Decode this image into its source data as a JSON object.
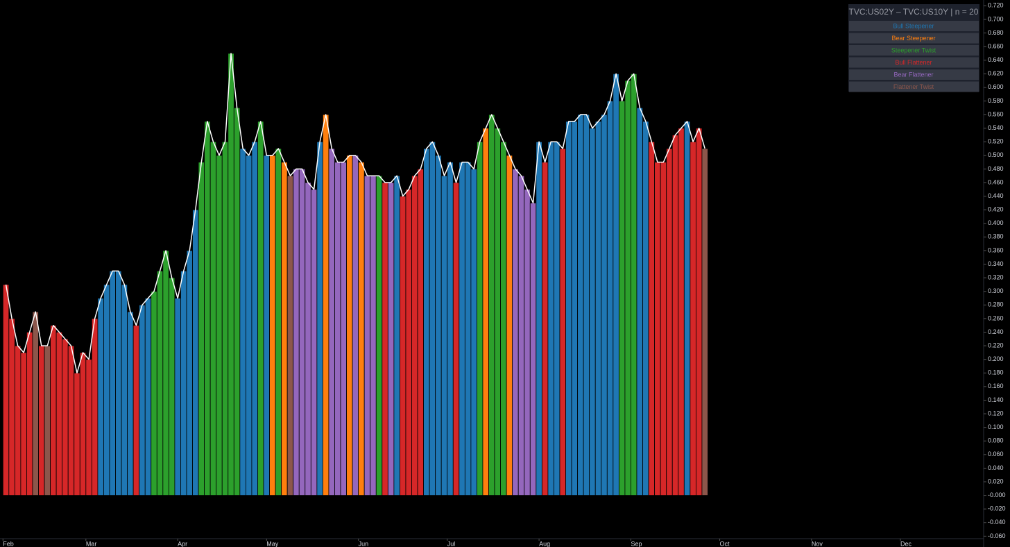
{
  "chart_data": {
    "type": "bar",
    "legend_title": "TVC:US02Y – TVC:US10Y | n = 20",
    "legend": [
      {
        "name": "Bull Steepener",
        "color": "#1f77b4"
      },
      {
        "name": "Bear Steepener",
        "color": "#ff7f0e"
      },
      {
        "name": "Steepener Twist",
        "color": "#2ca02c"
      },
      {
        "name": "Bull Flattener",
        "color": "#d62728"
      },
      {
        "name": "Bear Flattener",
        "color": "#9467bd"
      },
      {
        "name": "Flattener Twist",
        "color": "#8c564b"
      }
    ],
    "values": [
      0.31,
      0.26,
      0.22,
      0.21,
      0.24,
      0.27,
      0.22,
      0.22,
      0.25,
      0.24,
      0.23,
      0.22,
      0.18,
      0.21,
      0.2,
      0.26,
      0.29,
      0.31,
      0.33,
      0.33,
      0.31,
      0.27,
      0.25,
      0.28,
      0.29,
      0.3,
      0.33,
      0.36,
      0.32,
      0.29,
      0.33,
      0.36,
      0.42,
      0.49,
      0.55,
      0.52,
      0.5,
      0.52,
      0.65,
      0.57,
      0.51,
      0.5,
      0.52,
      0.55,
      0.5,
      0.5,
      0.51,
      0.49,
      0.47,
      0.48,
      0.48,
      0.46,
      0.45,
      0.52,
      0.56,
      0.51,
      0.49,
      0.49,
      0.5,
      0.5,
      0.49,
      0.47,
      0.47,
      0.47,
      0.46,
      0.46,
      0.47,
      0.44,
      0.45,
      0.47,
      0.48,
      0.51,
      0.52,
      0.5,
      0.47,
      0.49,
      0.46,
      0.49,
      0.49,
      0.48,
      0.52,
      0.54,
      0.56,
      0.54,
      0.52,
      0.5,
      0.48,
      0.47,
      0.45,
      0.43,
      0.52,
      0.49,
      0.52,
      0.52,
      0.51,
      0.55,
      0.55,
      0.56,
      0.56,
      0.54,
      0.55,
      0.56,
      0.58,
      0.62,
      0.58,
      0.61,
      0.62,
      0.57,
      0.55,
      0.52,
      0.49,
      0.49,
      0.51,
      0.53,
      0.54,
      0.55,
      0.52,
      0.54,
      0.51
    ],
    "regime": [
      3,
      3,
      3,
      3,
      3,
      5,
      3,
      5,
      3,
      3,
      3,
      3,
      3,
      3,
      3,
      3,
      0,
      0,
      0,
      0,
      0,
      0,
      3,
      0,
      0,
      2,
      2,
      2,
      2,
      0,
      0,
      0,
      0,
      2,
      2,
      2,
      2,
      2,
      2,
      2,
      0,
      0,
      0,
      2,
      0,
      1,
      2,
      1,
      5,
      4,
      4,
      4,
      4,
      0,
      1,
      4,
      4,
      4,
      1,
      4,
      1,
      4,
      4,
      2,
      3,
      4,
      0,
      3,
      3,
      3,
      3,
      0,
      0,
      0,
      0,
      0,
      3,
      0,
      0,
      0,
      2,
      1,
      2,
      2,
      2,
      1,
      4,
      4,
      4,
      4,
      0,
      3,
      0,
      0,
      3,
      0,
      0,
      0,
      0,
      0,
      0,
      0,
      0,
      0,
      2,
      2,
      2,
      0,
      0,
      3,
      3,
      3,
      3,
      3,
      3,
      0,
      3,
      3,
      5
    ],
    "xlim": [
      -0.5,
      165.2
    ],
    "xticks": [
      {
        "value": 0,
        "label": "Feb"
      },
      {
        "value": 14,
        "label": "Mar"
      },
      {
        "value": 29.5,
        "label": "Apr"
      },
      {
        "value": 44.5,
        "label": "May"
      },
      {
        "value": 60,
        "label": "Jun"
      },
      {
        "value": 75,
        "label": "Jul"
      },
      {
        "value": 90.5,
        "label": "Aug"
      },
      {
        "value": 106,
        "label": "Sep"
      },
      {
        "value": 121,
        "label": "Oct"
      },
      {
        "value": 136.5,
        "label": "Nov"
      },
      {
        "value": 151.5,
        "label": "Dec"
      }
    ],
    "ylim": [
      -0.0637,
      0.7285
    ],
    "yticks": [
      {
        "value": 0.72,
        "label": "0.720"
      },
      {
        "value": 0.7,
        "label": "0.700"
      },
      {
        "value": 0.68,
        "label": "0.680"
      },
      {
        "value": 0.66,
        "label": "0.660"
      },
      {
        "value": 0.64,
        "label": "0.640"
      },
      {
        "value": 0.62,
        "label": "0.620"
      },
      {
        "value": 0.6,
        "label": "0.600"
      },
      {
        "value": 0.58,
        "label": "0.580"
      },
      {
        "value": 0.56,
        "label": "0.560"
      },
      {
        "value": 0.54,
        "label": "0.540"
      },
      {
        "value": 0.52,
        "label": "0.520"
      },
      {
        "value": 0.5,
        "label": "0.500"
      },
      {
        "value": 0.48,
        "label": "0.480"
      },
      {
        "value": 0.46,
        "label": "0.460"
      },
      {
        "value": 0.44,
        "label": "0.440"
      },
      {
        "value": 0.42,
        "label": "0.420"
      },
      {
        "value": 0.4,
        "label": "0.400"
      },
      {
        "value": 0.38,
        "label": "0.380"
      },
      {
        "value": 0.36,
        "label": "0.360"
      },
      {
        "value": 0.34,
        "label": "0.340"
      },
      {
        "value": 0.32,
        "label": "0.320"
      },
      {
        "value": 0.3,
        "label": "0.300"
      },
      {
        "value": 0.28,
        "label": "0.280"
      },
      {
        "value": 0.26,
        "label": "0.260"
      },
      {
        "value": 0.24,
        "label": "0.240"
      },
      {
        "value": 0.22,
        "label": "0.220"
      },
      {
        "value": 0.2,
        "label": "0.200"
      },
      {
        "value": 0.18,
        "label": "0.180"
      },
      {
        "value": 0.16,
        "label": "0.160"
      },
      {
        "value": 0.14,
        "label": "0.140"
      },
      {
        "value": 0.12,
        "label": "0.120"
      },
      {
        "value": 0.1,
        "label": "0.100"
      },
      {
        "value": 0.08,
        "label": "0.080"
      },
      {
        "value": 0.06,
        "label": "0.060"
      },
      {
        "value": 0.04,
        "label": "0.040"
      },
      {
        "value": 0.02,
        "label": "0.020"
      },
      {
        "value": 0,
        "label": "-0.000"
      },
      {
        "value": -0.02,
        "label": "-0.020"
      },
      {
        "value": -0.04,
        "label": "-0.040"
      },
      {
        "value": -0.06,
        "label": "-0.060"
      }
    ],
    "grid": false
  }
}
